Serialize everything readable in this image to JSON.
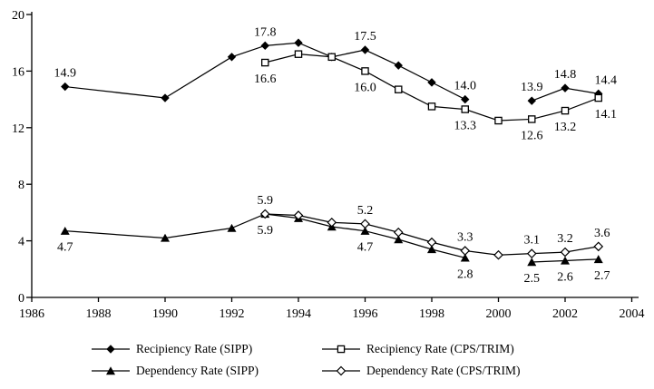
{
  "page": {
    "background": "#ffffff"
  },
  "chart_data": {
    "type": "line",
    "title": "",
    "xlabel": "",
    "ylabel": "",
    "xlim": [
      1986,
      2004
    ],
    "ylim": [
      0,
      20
    ],
    "x_ticks": [
      1986,
      1988,
      1990,
      1992,
      1994,
      1996,
      1998,
      2000,
      2002,
      2004
    ],
    "y_ticks": [
      0,
      4,
      8,
      12,
      16,
      20
    ],
    "grid": false,
    "legend_position": "bottom",
    "axis_color": "#000000",
    "series": [
      {
        "name": "Recipiency Rate (SIPP)",
        "marker": "filled-diamond",
        "color": "#000000",
        "points": [
          {
            "x": 1987,
            "y": 14.9,
            "label": "14.9",
            "label_pos": "above"
          },
          {
            "x": 1990,
            "y": 14.1
          },
          {
            "x": 1992,
            "y": 17.0
          },
          {
            "x": 1993,
            "y": 17.8,
            "label": "17.8",
            "label_pos": "above"
          },
          {
            "x": 1994,
            "y": 18.0
          },
          {
            "x": 1995,
            "y": 17.0
          },
          {
            "x": 1996,
            "y": 17.5,
            "label": "17.5",
            "label_pos": "above"
          },
          {
            "x": 1997,
            "y": 16.4
          },
          {
            "x": 1998,
            "y": 15.2
          },
          {
            "x": 1999,
            "y": 14.0,
            "label": "14.0",
            "label_pos": "above"
          },
          null,
          {
            "x": 2001,
            "y": 13.9,
            "label": "13.9",
            "label_pos": "above"
          },
          {
            "x": 2002,
            "y": 14.8,
            "label": "14.8",
            "label_pos": "above"
          },
          {
            "x": 2003,
            "y": 14.4,
            "label": "14.4",
            "label_pos": "above",
            "dx": 8
          }
        ]
      },
      {
        "name": "Recipiency Rate (CPS/TRIM)",
        "marker": "open-square",
        "color": "#000000",
        "points": [
          {
            "x": 1993,
            "y": 16.6,
            "label": "16.6",
            "label_pos": "below"
          },
          {
            "x": 1994,
            "y": 17.2
          },
          {
            "x": 1995,
            "y": 17.0
          },
          {
            "x": 1996,
            "y": 16.0,
            "label": "16.0",
            "label_pos": "below"
          },
          {
            "x": 1997,
            "y": 14.7
          },
          {
            "x": 1998,
            "y": 13.5
          },
          {
            "x": 1999,
            "y": 13.3,
            "label": "13.3",
            "label_pos": "below"
          },
          {
            "x": 2000,
            "y": 12.5
          },
          {
            "x": 2001,
            "y": 12.6,
            "label": "12.6",
            "label_pos": "below"
          },
          {
            "x": 2002,
            "y": 13.2,
            "label": "13.2",
            "label_pos": "below"
          },
          {
            "x": 2003,
            "y": 14.1,
            "label": "14.1",
            "label_pos": "below",
            "dx": 8
          }
        ]
      },
      {
        "name": "Dependency Rate (SIPP)",
        "marker": "filled-triangle",
        "color": "#000000",
        "points": [
          {
            "x": 1987,
            "y": 4.7,
            "label": "4.7",
            "label_pos": "below"
          },
          {
            "x": 1990,
            "y": 4.2
          },
          {
            "x": 1992,
            "y": 4.9
          },
          {
            "x": 1993,
            "y": 5.9,
            "label": "5.9",
            "label_pos": "below"
          },
          {
            "x": 1994,
            "y": 5.6
          },
          {
            "x": 1995,
            "y": 5.0
          },
          {
            "x": 1996,
            "y": 4.7,
            "label": "4.7",
            "label_pos": "below"
          },
          {
            "x": 1997,
            "y": 4.1
          },
          {
            "x": 1998,
            "y": 3.4
          },
          {
            "x": 1999,
            "y": 2.8,
            "label": "2.8",
            "label_pos": "below"
          },
          null,
          {
            "x": 2001,
            "y": 2.5,
            "label": "2.5",
            "label_pos": "below"
          },
          {
            "x": 2002,
            "y": 2.6,
            "label": "2.6",
            "label_pos": "below"
          },
          {
            "x": 2003,
            "y": 2.7,
            "label": "2.7",
            "label_pos": "below",
            "dx": 4
          }
        ]
      },
      {
        "name": "Dependency Rate (CPS/TRIM)",
        "marker": "open-diamond",
        "color": "#000000",
        "points": [
          {
            "x": 1993,
            "y": 5.9,
            "label": "5.9",
            "label_pos": "above"
          },
          {
            "x": 1994,
            "y": 5.8
          },
          {
            "x": 1995,
            "y": 5.3
          },
          {
            "x": 1996,
            "y": 5.2,
            "label": "5.2",
            "label_pos": "above"
          },
          {
            "x": 1997,
            "y": 4.6
          },
          {
            "x": 1998,
            "y": 3.9
          },
          {
            "x": 1999,
            "y": 3.3,
            "label": "3.3",
            "label_pos": "above"
          },
          {
            "x": 2000,
            "y": 3.0
          },
          {
            "x": 2001,
            "y": 3.1,
            "label": "3.1",
            "label_pos": "above"
          },
          {
            "x": 2002,
            "y": 3.2,
            "label": "3.2",
            "label_pos": "above"
          },
          {
            "x": 2003,
            "y": 3.6,
            "label": "3.6",
            "label_pos": "above",
            "dx": 4
          }
        ]
      }
    ]
  }
}
